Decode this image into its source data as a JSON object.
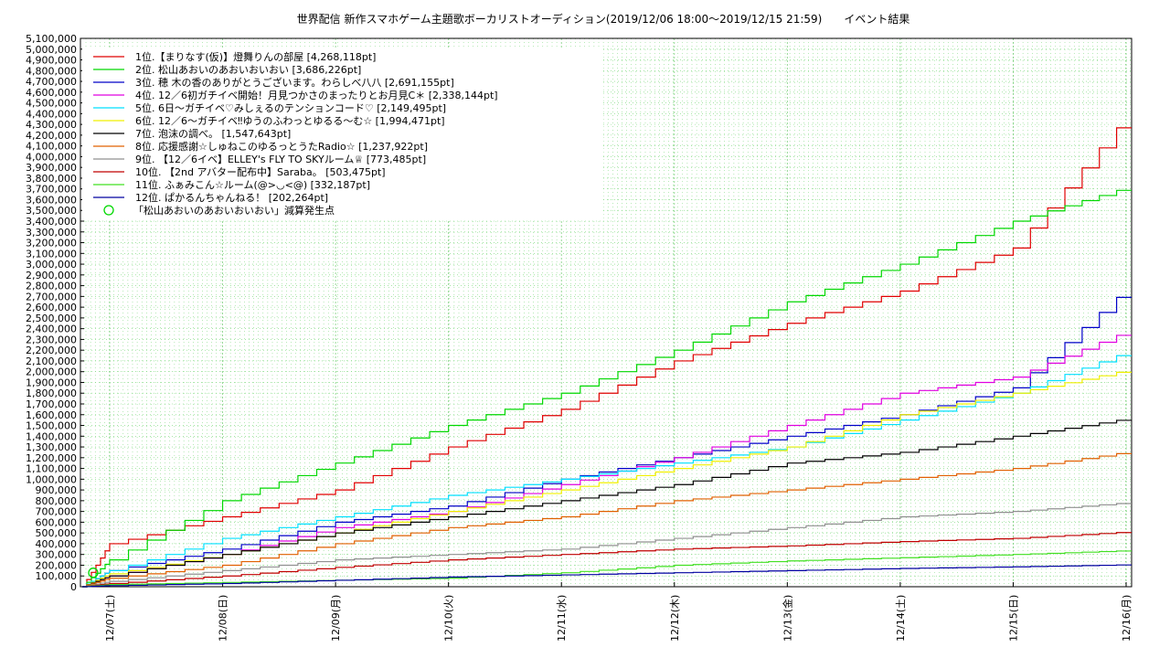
{
  "chart_data": {
    "type": "line",
    "title": "世界配信 新作スマホゲーム主題歌ボーカリストオーディション(2019/12/06 18:00～2019/12/15 21:59)　　イベント結果",
    "x": [
      "12/06 18:00",
      "12/07",
      "12/08",
      "12/09",
      "12/10",
      "12/11",
      "12/12",
      "12/13",
      "12/14",
      "12/15",
      "12/15 21:59",
      "12/16"
    ],
    "x_ticks": [
      "12/07(土)",
      "12/08(日)",
      "12/09(月)",
      "12/10(火)",
      "12/11(水)",
      "12/12(木)",
      "12/13(金)",
      "12/14(土)",
      "12/15(日)",
      "12/16(月)"
    ],
    "ylim": [
      0,
      5100000
    ],
    "ytick_step": 100000,
    "grid": true,
    "legend_position": "top-left",
    "series": [
      {
        "name": "1位.【まりなす(仮)】燈舞りんの部屋 [4,268,118pt]",
        "color": "#e00000",
        "values": [
          0,
          400000,
          650000,
          900000,
          1300000,
          1650000,
          2100000,
          2450000,
          2750000,
          3150000,
          4268118,
          4268118
        ]
      },
      {
        "name": "2位. 松山あおいのあおいおいおい [3,686,226pt]",
        "color": "#00d800",
        "values": [
          0,
          250000,
          800000,
          1150000,
          1500000,
          1800000,
          2200000,
          2650000,
          3000000,
          3400000,
          3686226,
          3686226
        ]
      },
      {
        "name": "3位. 穂 木の香のありがとうございます。わらしべ八八 [2,691,155pt]",
        "color": "#0000c8",
        "values": [
          0,
          150000,
          350000,
          600000,
          750000,
          1000000,
          1200000,
          1400000,
          1600000,
          1850000,
          2691155,
          2691155
        ]
      },
      {
        "name": "4位. 12／6初ガチイベ開始！月見つかさのまったりとお月見C＊ [2,338,144pt]",
        "color": "#e000e0",
        "values": [
          0,
          100000,
          300000,
          550000,
          700000,
          950000,
          1200000,
          1500000,
          1800000,
          1950000,
          2338144,
          2338144
        ]
      },
      {
        "name": "5位. 6日～ガチイベ♡みしぇるのテンションコード♡ [2,149,495pt]",
        "color": "#00e0ff",
        "values": [
          0,
          150000,
          450000,
          650000,
          850000,
          1000000,
          1150000,
          1300000,
          1550000,
          1800000,
          2149495,
          2149495
        ]
      },
      {
        "name": "6位. 12／6～ガチイベ‼ゆうのふわっとゆるる～む☆ [1,994,471pt]",
        "color": "#f0f000",
        "values": [
          0,
          120000,
          300000,
          500000,
          700000,
          900000,
          1100000,
          1300000,
          1600000,
          1800000,
          1994471,
          1994471
        ]
      },
      {
        "name": "7位. 泡沫の調べ。 [1,547,643pt]",
        "color": "#000000",
        "values": [
          0,
          100000,
          300000,
          500000,
          650000,
          800000,
          950000,
          1150000,
          1250000,
          1400000,
          1547643,
          1547643
        ]
      },
      {
        "name": "8位. 応援感謝☆しゅねこのゆるっとうたRadio☆ [1,237,922pt]",
        "color": "#e06000",
        "values": [
          0,
          80000,
          200000,
          400000,
          550000,
          650000,
          800000,
          900000,
          1000000,
          1100000,
          1237922,
          1237922
        ]
      },
      {
        "name": "9位. 【12／6イベ】ELLEY's FLY TO SKYルーム♕ [773,485pt]",
        "color": "#909090",
        "values": [
          0,
          50000,
          150000,
          250000,
          300000,
          350000,
          450000,
          550000,
          650000,
          700000,
          773485,
          773485
        ]
      },
      {
        "name": "10位. 【2nd アバター配布中】Saraba。 [503,475pt]",
        "color": "#c00000",
        "values": [
          0,
          30000,
          100000,
          180000,
          250000,
          300000,
          350000,
          380000,
          420000,
          450000,
          503475,
          503475
        ]
      },
      {
        "name": "11位. ふぁみこん☆ルーム(@>◡<@) [332,187pt]",
        "color": "#40e020",
        "values": [
          0,
          20000,
          40000,
          60000,
          80000,
          130000,
          200000,
          240000,
          270000,
          300000,
          332187,
          332187
        ]
      },
      {
        "name": "12位. ぱかるんちゃんねる！ [202,264pt]",
        "color": "#0000a0",
        "values": [
          0,
          10000,
          30000,
          60000,
          90000,
          110000,
          130000,
          150000,
          170000,
          185000,
          202264,
          202264
        ]
      }
    ],
    "marker_legend": "「松山あおいのあおいおいおい」減算発生点",
    "marker_color": "#00d800",
    "markers": [
      {
        "x": "12/07",
        "y": 130000
      }
    ]
  }
}
